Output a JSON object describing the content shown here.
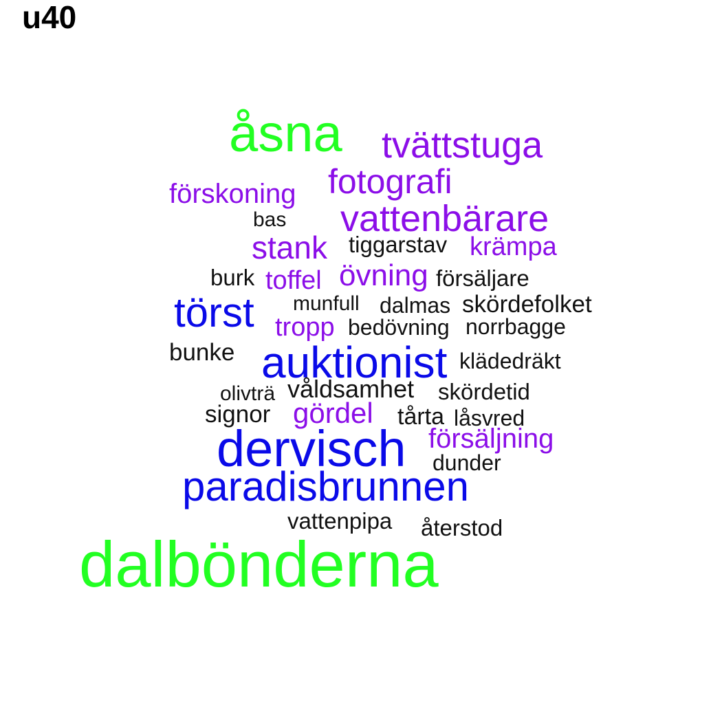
{
  "title": "u40",
  "colors": {
    "green": "#22ff22",
    "purple": "#8b0ee8",
    "blue": "#0a0ae8",
    "black": "#111111"
  },
  "words": [
    {
      "text": "åsna",
      "color": "green"
    },
    {
      "text": "tvättstuga",
      "color": "purple"
    },
    {
      "text": "fotografi",
      "color": "purple"
    },
    {
      "text": "förskoning",
      "color": "purple"
    },
    {
      "text": "vattenbärare",
      "color": "purple"
    },
    {
      "text": "bas",
      "color": "black"
    },
    {
      "text": "stank",
      "color": "purple"
    },
    {
      "text": "tiggarstav",
      "color": "black"
    },
    {
      "text": "krämpa",
      "color": "purple"
    },
    {
      "text": "burk",
      "color": "black"
    },
    {
      "text": "toffel",
      "color": "purple"
    },
    {
      "text": "övning",
      "color": "purple"
    },
    {
      "text": "försäljare",
      "color": "black"
    },
    {
      "text": "törst",
      "color": "blue"
    },
    {
      "text": "munfull",
      "color": "black"
    },
    {
      "text": "dalmas",
      "color": "black"
    },
    {
      "text": "skördefolket",
      "color": "black"
    },
    {
      "text": "tropp",
      "color": "purple"
    },
    {
      "text": "bedövning",
      "color": "black"
    },
    {
      "text": "norrbagge",
      "color": "black"
    },
    {
      "text": "bunke",
      "color": "black"
    },
    {
      "text": "auktionist",
      "color": "blue"
    },
    {
      "text": "klädedräkt",
      "color": "black"
    },
    {
      "text": "olivträ",
      "color": "black"
    },
    {
      "text": "våldsamhet",
      "color": "black"
    },
    {
      "text": "skördetid",
      "color": "black"
    },
    {
      "text": "signor",
      "color": "black"
    },
    {
      "text": "gördel",
      "color": "purple"
    },
    {
      "text": "tårta",
      "color": "black"
    },
    {
      "text": "låsvred",
      "color": "black"
    },
    {
      "text": "försäljning",
      "color": "purple"
    },
    {
      "text": "dervisch",
      "color": "blue"
    },
    {
      "text": "dunder",
      "color": "black"
    },
    {
      "text": "paradisbrunnen",
      "color": "blue"
    },
    {
      "text": "vattenpipa",
      "color": "black"
    },
    {
      "text": "återstod",
      "color": "black"
    },
    {
      "text": "dalbönderna",
      "color": "green"
    }
  ]
}
